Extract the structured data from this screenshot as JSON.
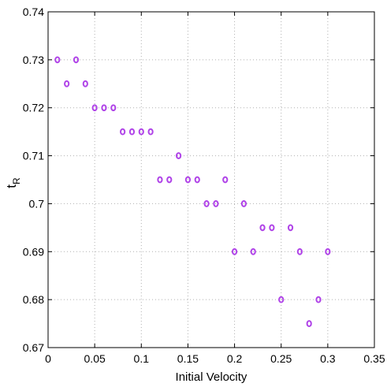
{
  "chart_data": {
    "type": "scatter",
    "title": "",
    "xlabel": "Initial Velocity",
    "ylabel": {
      "main": "t",
      "subscript": "R"
    },
    "xlim": [
      0,
      0.35
    ],
    "ylim": [
      0.67,
      0.74
    ],
    "xticks": [
      "0",
      "0.05",
      "0.1",
      "0.15",
      "0.2",
      "0.25",
      "0.3",
      "0.35"
    ],
    "yticks": [
      "0.67",
      "0.68",
      "0.69",
      "0.7",
      "0.71",
      "0.72",
      "0.73",
      "0.74"
    ],
    "grid": true,
    "marker": "circle-open",
    "color": "#b044e8",
    "points": [
      {
        "x": 0.01,
        "y": 0.73
      },
      {
        "x": 0.02,
        "y": 0.725
      },
      {
        "x": 0.03,
        "y": 0.73
      },
      {
        "x": 0.04,
        "y": 0.725
      },
      {
        "x": 0.05,
        "y": 0.72
      },
      {
        "x": 0.06,
        "y": 0.72
      },
      {
        "x": 0.07,
        "y": 0.72
      },
      {
        "x": 0.08,
        "y": 0.715
      },
      {
        "x": 0.09,
        "y": 0.715
      },
      {
        "x": 0.1,
        "y": 0.715
      },
      {
        "x": 0.11,
        "y": 0.715
      },
      {
        "x": 0.12,
        "y": 0.705
      },
      {
        "x": 0.13,
        "y": 0.705
      },
      {
        "x": 0.14,
        "y": 0.71
      },
      {
        "x": 0.15,
        "y": 0.705
      },
      {
        "x": 0.16,
        "y": 0.705
      },
      {
        "x": 0.17,
        "y": 0.7
      },
      {
        "x": 0.18,
        "y": 0.7
      },
      {
        "x": 0.19,
        "y": 0.705
      },
      {
        "x": 0.2,
        "y": 0.69
      },
      {
        "x": 0.21,
        "y": 0.7
      },
      {
        "x": 0.22,
        "y": 0.69
      },
      {
        "x": 0.23,
        "y": 0.695
      },
      {
        "x": 0.24,
        "y": 0.695
      },
      {
        "x": 0.25,
        "y": 0.68
      },
      {
        "x": 0.26,
        "y": 0.695
      },
      {
        "x": 0.27,
        "y": 0.69
      },
      {
        "x": 0.28,
        "y": 0.675
      },
      {
        "x": 0.29,
        "y": 0.68
      },
      {
        "x": 0.3,
        "y": 0.69
      }
    ]
  }
}
